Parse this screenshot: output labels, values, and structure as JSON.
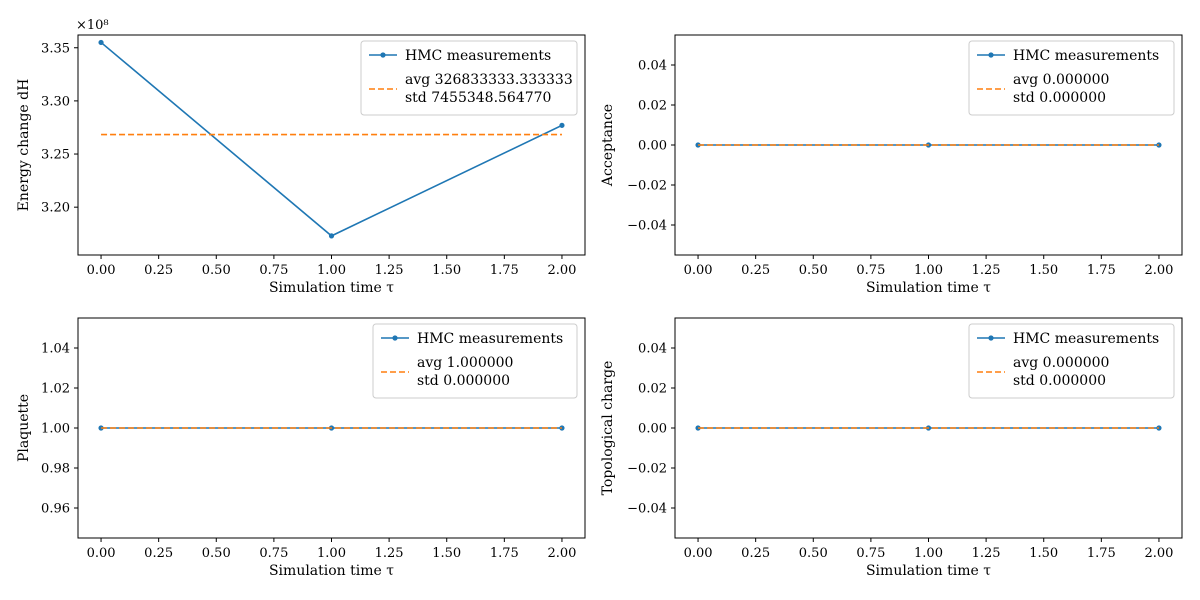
{
  "chart_data": [
    {
      "type": "line",
      "xlabel": "Simulation time τ",
      "ylabel": "Energy change dH",
      "xlim": [
        -0.1,
        2.1
      ],
      "ylim": [
        3.155,
        3.362
      ],
      "xticks": [
        0.0,
        0.25,
        0.5,
        0.75,
        1.0,
        1.25,
        1.5,
        1.75,
        2.0
      ],
      "xtick_labels": [
        "0.00",
        "0.25",
        "0.50",
        "0.75",
        "1.00",
        "1.25",
        "1.50",
        "1.75",
        "2.00"
      ],
      "yticks": [
        3.2,
        3.25,
        3.3,
        3.35
      ],
      "ytick_labels": [
        "3.20",
        "3.25",
        "3.30",
        "3.35"
      ],
      "offset_text": "×10⁸",
      "grid": false,
      "legend_position": "top-right",
      "series": [
        {
          "name": "HMC measurements",
          "style": "solid-marker",
          "color": "#1f77b4",
          "x": [
            0,
            1,
            2
          ],
          "y": [
            3.355,
            3.173,
            3.277
          ]
        },
        {
          "name": "avg 326833333.333333",
          "name_line2": "std 7455348.564770",
          "style": "dashed",
          "color": "#ff7f0e",
          "x": [
            0,
            2
          ],
          "y": [
            3.2683,
            3.2683
          ]
        }
      ]
    },
    {
      "type": "line",
      "xlabel": "Simulation time τ",
      "ylabel": "Acceptance",
      "xlim": [
        -0.1,
        2.1
      ],
      "ylim": [
        -0.055,
        0.055
      ],
      "xticks": [
        0.0,
        0.25,
        0.5,
        0.75,
        1.0,
        1.25,
        1.5,
        1.75,
        2.0
      ],
      "xtick_labels": [
        "0.00",
        "0.25",
        "0.50",
        "0.75",
        "1.00",
        "1.25",
        "1.50",
        "1.75",
        "2.00"
      ],
      "yticks": [
        -0.04,
        -0.02,
        0.0,
        0.02,
        0.04
      ],
      "ytick_labels": [
        "−0.04",
        "−0.02",
        "0.00",
        "0.02",
        "0.04"
      ],
      "offset_text": "",
      "grid": false,
      "legend_position": "top-right",
      "series": [
        {
          "name": "HMC measurements",
          "style": "solid-marker",
          "color": "#1f77b4",
          "x": [
            0,
            1,
            2
          ],
          "y": [
            0,
            0,
            0
          ]
        },
        {
          "name": "avg 0.000000",
          "name_line2": "std 0.000000",
          "style": "dashed",
          "color": "#ff7f0e",
          "x": [
            0,
            2
          ],
          "y": [
            0,
            0
          ]
        }
      ]
    },
    {
      "type": "line",
      "xlabel": "Simulation time τ",
      "ylabel": "Plaquette",
      "xlim": [
        -0.1,
        2.1
      ],
      "ylim": [
        0.945,
        1.055
      ],
      "xticks": [
        0.0,
        0.25,
        0.5,
        0.75,
        1.0,
        1.25,
        1.5,
        1.75,
        2.0
      ],
      "xtick_labels": [
        "0.00",
        "0.25",
        "0.50",
        "0.75",
        "1.00",
        "1.25",
        "1.50",
        "1.75",
        "2.00"
      ],
      "yticks": [
        0.96,
        0.98,
        1.0,
        1.02,
        1.04
      ],
      "ytick_labels": [
        "0.96",
        "0.98",
        "1.00",
        "1.02",
        "1.04"
      ],
      "offset_text": "",
      "grid": false,
      "legend_position": "top-right",
      "series": [
        {
          "name": "HMC measurements",
          "style": "solid-marker",
          "color": "#1f77b4",
          "x": [
            0,
            1,
            2
          ],
          "y": [
            1,
            1,
            1
          ]
        },
        {
          "name": "avg 1.000000",
          "name_line2": "std 0.000000",
          "style": "dashed",
          "color": "#ff7f0e",
          "x": [
            0,
            2
          ],
          "y": [
            1,
            1
          ]
        }
      ]
    },
    {
      "type": "line",
      "xlabel": "Simulation time τ",
      "ylabel": "Topological charge",
      "xlim": [
        -0.1,
        2.1
      ],
      "ylim": [
        -0.055,
        0.055
      ],
      "xticks": [
        0.0,
        0.25,
        0.5,
        0.75,
        1.0,
        1.25,
        1.5,
        1.75,
        2.0
      ],
      "xtick_labels": [
        "0.00",
        "0.25",
        "0.50",
        "0.75",
        "1.00",
        "1.25",
        "1.50",
        "1.75",
        "2.00"
      ],
      "yticks": [
        -0.04,
        -0.02,
        0.0,
        0.02,
        0.04
      ],
      "ytick_labels": [
        "−0.04",
        "−0.02",
        "0.00",
        "0.02",
        "0.04"
      ],
      "offset_text": "",
      "grid": false,
      "legend_position": "top-right",
      "series": [
        {
          "name": "HMC measurements",
          "style": "solid-marker",
          "color": "#1f77b4",
          "x": [
            0,
            1,
            2
          ],
          "y": [
            0,
            0,
            0
          ]
        },
        {
          "name": "avg 0.000000",
          "name_line2": "std 0.000000",
          "style": "dashed",
          "color": "#ff7f0e",
          "x": [
            0,
            2
          ],
          "y": [
            0,
            0
          ]
        }
      ]
    }
  ]
}
